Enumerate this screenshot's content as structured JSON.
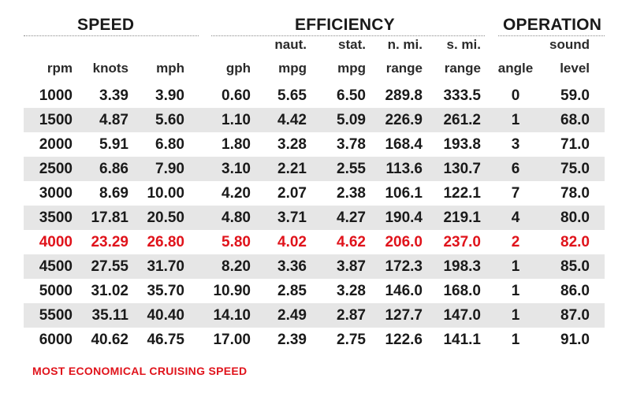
{
  "groups": {
    "speed": "SPEED",
    "efficiency": "EFFICIENCY",
    "operation": "OPERATION"
  },
  "columns": [
    {
      "line1": "",
      "line2": "rpm"
    },
    {
      "line1": "",
      "line2": "knots"
    },
    {
      "line1": "",
      "line2": "mph"
    },
    {
      "line1": "",
      "line2": "gph"
    },
    {
      "line1": "naut.",
      "line2": "mpg"
    },
    {
      "line1": "stat.",
      "line2": "mpg"
    },
    {
      "line1": "n. mi.",
      "line2": "range"
    },
    {
      "line1": "s. mi.",
      "line2": "range"
    },
    {
      "line1": "",
      "line2": "angle"
    },
    {
      "line1": "sound",
      "line2": "level"
    }
  ],
  "rows": [
    [
      "1000",
      "3.39",
      "3.90",
      "0.60",
      "5.65",
      "6.50",
      "289.8",
      "333.5",
      "0",
      "59.0"
    ],
    [
      "1500",
      "4.87",
      "5.60",
      "1.10",
      "4.42",
      "5.09",
      "226.9",
      "261.2",
      "1",
      "68.0"
    ],
    [
      "2000",
      "5.91",
      "6.80",
      "1.80",
      "3.28",
      "3.78",
      "168.4",
      "193.8",
      "3",
      "71.0"
    ],
    [
      "2500",
      "6.86",
      "7.90",
      "3.10",
      "2.21",
      "2.55",
      "113.6",
      "130.7",
      "6",
      "75.0"
    ],
    [
      "3000",
      "8.69",
      "10.00",
      "4.20",
      "2.07",
      "2.38",
      "106.1",
      "122.1",
      "7",
      "78.0"
    ],
    [
      "3500",
      "17.81",
      "20.50",
      "4.80",
      "3.71",
      "4.27",
      "190.4",
      "219.1",
      "4",
      "80.0"
    ],
    [
      "4000",
      "23.29",
      "26.80",
      "5.80",
      "4.02",
      "4.62",
      "206.0",
      "237.0",
      "2",
      "82.0"
    ],
    [
      "4500",
      "27.55",
      "31.70",
      "8.20",
      "3.36",
      "3.87",
      "172.3",
      "198.3",
      "1",
      "85.0"
    ],
    [
      "5000",
      "31.02",
      "35.70",
      "10.90",
      "2.85",
      "3.28",
      "146.0",
      "168.0",
      "1",
      "86.0"
    ],
    [
      "5500",
      "35.11",
      "40.40",
      "14.10",
      "2.49",
      "2.87",
      "127.7",
      "147.0",
      "1",
      "87.0"
    ],
    [
      "6000",
      "40.62",
      "46.75",
      "17.00",
      "2.39",
      "2.75",
      "122.6",
      "141.1",
      "1",
      "91.0"
    ]
  ],
  "highlight_row_index": 6,
  "highlight_color": "#e0131b",
  "footnote": "MOST ECONOMICAL CRUISING SPEED"
}
